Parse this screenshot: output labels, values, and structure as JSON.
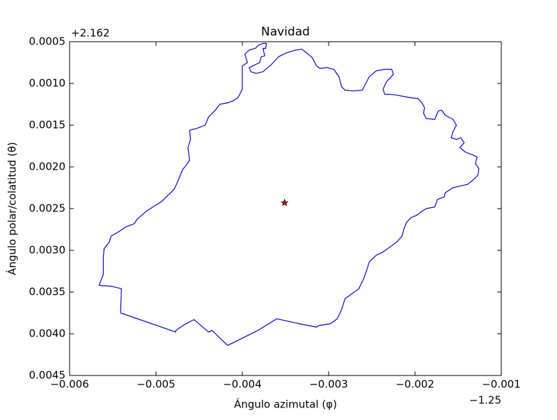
{
  "chart_data": {
    "type": "line",
    "title": "Navidad",
    "xlabel": "Ángulo azimutal (φ)",
    "ylabel": "Ángulo polar/colatitud (θ)",
    "x_offset_label": "−1.25",
    "y_offset_label": "+2.162",
    "xlim": [
      -0.006,
      -0.001
    ],
    "ylim": [
      0.0005,
      0.0045
    ],
    "y_inverted": true,
    "grid": false,
    "xticks": [
      {
        "value": -0.006,
        "label": "−0.006"
      },
      {
        "value": -0.005,
        "label": "−0.005"
      },
      {
        "value": -0.004,
        "label": "−0.004"
      },
      {
        "value": -0.003,
        "label": "−0.003"
      },
      {
        "value": -0.002,
        "label": "−0.002"
      },
      {
        "value": -0.001,
        "label": "−0.001"
      }
    ],
    "yticks": [
      0.0005,
      {
        "value": 0.001,
        "label": "0.0010"
      },
      0.0015,
      {
        "value": 0.002,
        "label": "0.0020"
      },
      0.0025,
      {
        "value": 0.003,
        "label": "0.0030"
      },
      0.0035,
      {
        "value": 0.004,
        "label": "0.0040"
      },
      0.0045
    ],
    "series": [
      {
        "type": "line",
        "color": "#0000ff",
        "x": [
          -0.00566,
          -0.00561,
          -0.00561,
          -0.0056,
          -0.00554,
          -0.00552,
          -0.00542,
          -0.00535,
          -0.00525,
          -0.00522,
          -0.00511,
          -0.00502,
          -0.00494,
          -0.00485,
          -0.00479,
          -0.00475,
          -0.00473,
          -0.00469,
          -0.00465,
          -0.00461,
          -0.00463,
          -0.0046,
          -0.00461,
          -0.00453,
          -0.00443,
          -0.00439,
          -0.00432,
          -0.00426,
          -0.00416,
          -0.00411,
          -0.00405,
          -0.004,
          -0.004,
          -0.00394,
          -0.00397,
          -0.00392,
          -0.00385,
          -0.00381,
          -0.00376,
          -0.00372,
          -0.00373,
          -0.00376,
          -0.00374,
          -0.00378,
          -0.0038,
          -0.00392,
          -0.0039,
          -0.00384,
          -0.00376,
          -0.00366,
          -0.00358,
          -0.00348,
          -0.00338,
          -0.00331,
          -0.00326,
          -0.00319,
          -0.00314,
          -0.0031,
          -0.00302,
          -0.00294,
          -0.00288,
          -0.00285,
          -0.00281,
          -0.00271,
          -0.00261,
          -0.00257,
          -0.00253,
          -0.00245,
          -0.00235,
          -0.00227,
          -0.00225,
          -0.00233,
          -0.00237,
          -0.00235,
          -0.00229,
          -0.00221,
          -0.00206,
          -0.00197,
          -0.00192,
          -0.00189,
          -0.0019,
          -0.00187,
          -0.00177,
          -0.00173,
          -0.00169,
          -0.00165,
          -0.00156,
          -0.00152,
          -0.00156,
          -0.00158,
          -0.00152,
          -0.00147,
          -0.00143,
          -0.00148,
          -0.00142,
          -0.00135,
          -0.00128,
          -0.0013,
          -0.00126,
          -0.00127,
          -0.00132,
          -0.00139,
          -0.00148,
          -0.00156,
          -0.00165,
          -0.00166,
          -0.00174,
          -0.00177,
          -0.00187,
          -0.00193,
          -0.00198,
          -0.00205,
          -0.0021,
          -0.00213,
          -0.00215,
          -0.00221,
          -0.00229,
          -0.00237,
          -0.00245,
          -0.00253,
          -0.00255,
          -0.00259,
          -0.00265,
          -0.00273,
          -0.00281,
          -0.00285,
          -0.0029,
          -0.00298,
          -0.00311,
          -0.00314,
          -0.00334,
          -0.0036,
          -0.00382,
          -0.00417,
          -0.00435,
          -0.00439,
          -0.00456,
          -0.00467,
          -0.00477,
          -0.00477,
          -0.00541,
          -0.0054,
          -0.00552,
          -0.00566
        ],
        "values": [
          0.00342,
          0.00329,
          0.00308,
          0.00298,
          0.0029,
          0.00283,
          0.00277,
          0.00272,
          0.00268,
          0.00263,
          0.00253,
          0.00247,
          0.00242,
          0.00233,
          0.00227,
          0.00218,
          0.00213,
          0.00203,
          0.00198,
          0.00192,
          0.00177,
          0.00167,
          0.00156,
          0.00154,
          0.0015,
          0.0014,
          0.00133,
          0.00125,
          0.00123,
          0.00121,
          0.00117,
          0.00107,
          0.00079,
          0.00075,
          0.00065,
          0.0006,
          0.00058,
          0.00054,
          0.00052,
          0.00052,
          0.00058,
          0.00058,
          0.00067,
          0.00068,
          0.00075,
          0.00081,
          0.00086,
          0.00088,
          0.00086,
          0.00077,
          0.00068,
          0.00063,
          0.0006,
          0.00059,
          0.00063,
          0.00069,
          0.00079,
          0.00082,
          0.00081,
          0.00083,
          0.00092,
          0.00104,
          0.00108,
          0.00109,
          0.00108,
          0.001,
          0.00092,
          0.00085,
          0.00083,
          0.00083,
          0.00089,
          0.00098,
          0.00107,
          0.00113,
          0.00113,
          0.00114,
          0.00117,
          0.00118,
          0.00123,
          0.00129,
          0.00136,
          0.00142,
          0.00143,
          0.00133,
          0.00132,
          0.00138,
          0.00143,
          0.0015,
          0.00158,
          0.00165,
          0.00167,
          0.00165,
          0.00171,
          0.00177,
          0.00182,
          0.00185,
          0.00188,
          0.00196,
          0.00202,
          0.0021,
          0.00215,
          0.00221,
          0.00223,
          0.00225,
          0.00231,
          0.00236,
          0.00239,
          0.00248,
          0.0025,
          0.00254,
          0.00258,
          0.00261,
          0.00267,
          0.00275,
          0.00283,
          0.0029,
          0.00296,
          0.00302,
          0.00306,
          0.00314,
          0.00321,
          0.00333,
          0.00346,
          0.00352,
          0.00358,
          0.00371,
          0.00382,
          0.00388,
          0.0039,
          0.00392,
          0.00388,
          0.00382,
          0.00396,
          0.00414,
          0.00396,
          0.00398,
          0.00383,
          0.00389,
          0.00396,
          0.00398,
          0.00375,
          0.00346,
          0.00343,
          0.00342
        ]
      },
      {
        "type": "scatter",
        "marker": "star",
        "color": "#cc0000",
        "x": [
          -0.00351
        ],
        "values": [
          0.00243
        ]
      }
    ]
  }
}
